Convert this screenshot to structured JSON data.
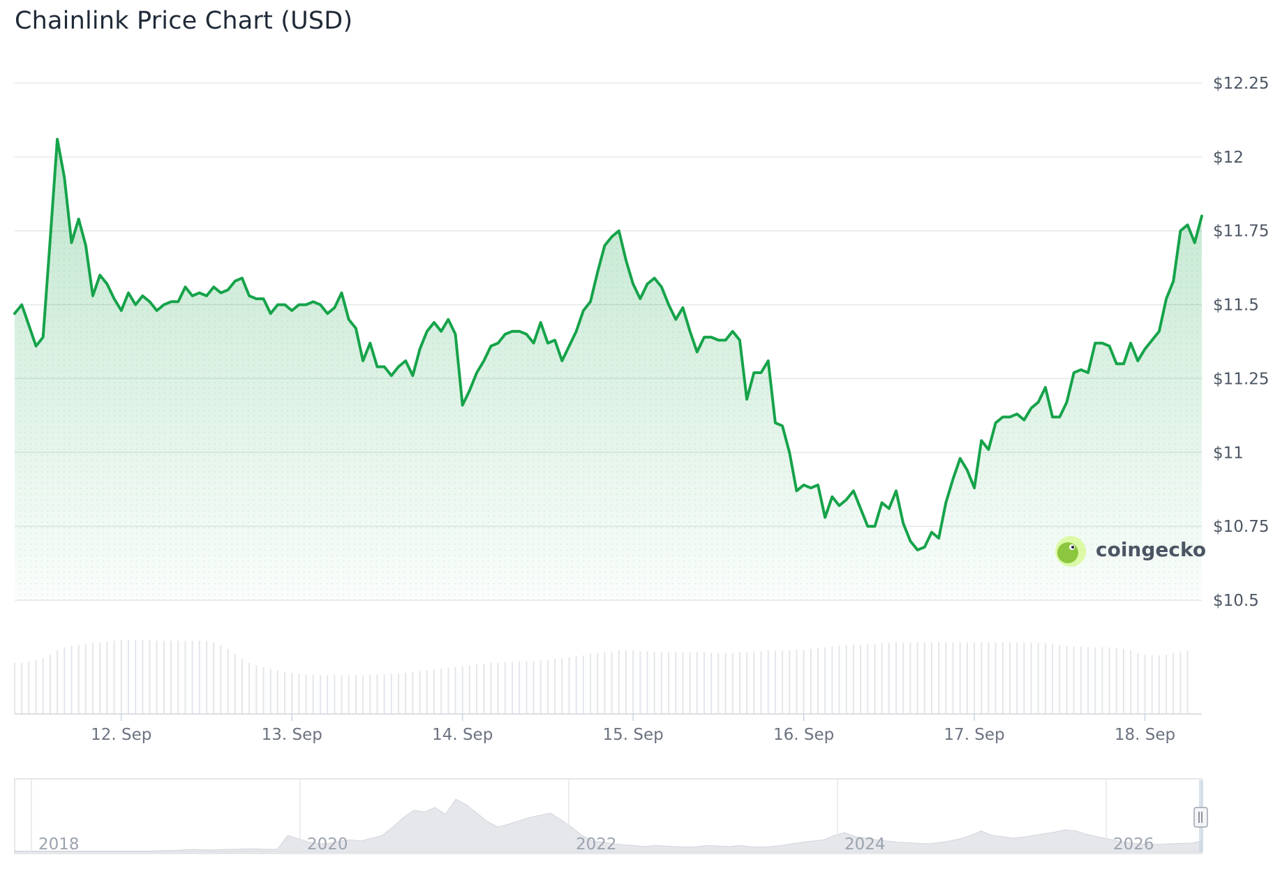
{
  "title": "Chainlink Price Chart (USD)",
  "brand": "coingecko",
  "chart_data": {
    "type": "line",
    "x_labels": [
      "12. Sep",
      "13. Sep",
      "14. Sep",
      "15. Sep",
      "16. Sep",
      "17. Sep",
      "18. Sep"
    ],
    "x_label_index": [
      15,
      39,
      63,
      87,
      111,
      135,
      159
    ],
    "y_ticks": [
      10.5,
      10.75,
      11,
      11.25,
      11.5,
      11.75,
      12,
      12.25
    ],
    "y_tick_labels": [
      "$10.5",
      "$10.75",
      "$11",
      "$11.25",
      "$11.5",
      "$11.75",
      "$12",
      "$12.25"
    ],
    "ylim": [
      10.5,
      12.25
    ],
    "series": [
      {
        "values": [
          11.47,
          11.5,
          11.43,
          11.36,
          11.39,
          11.72,
          12.06,
          11.93,
          11.71,
          11.79,
          11.7,
          11.53,
          11.6,
          11.57,
          11.52,
          11.48,
          11.54,
          11.5,
          11.53,
          11.51,
          11.48,
          11.5,
          11.51,
          11.51,
          11.56,
          11.53,
          11.54,
          11.53,
          11.56,
          11.54,
          11.55,
          11.58,
          11.59,
          11.53,
          11.52,
          11.52,
          11.47,
          11.5,
          11.5,
          11.48,
          11.5,
          11.5,
          11.51,
          11.5,
          11.47,
          11.49,
          11.54,
          11.45,
          11.42,
          11.31,
          11.37,
          11.29,
          11.29,
          11.26,
          11.29,
          11.31,
          11.26,
          11.35,
          11.41,
          11.44,
          11.41,
          11.45,
          11.4,
          11.16,
          11.21,
          11.27,
          11.31,
          11.36,
          11.37,
          11.4,
          11.41,
          11.41,
          11.4,
          11.37,
          11.44,
          11.37,
          11.38,
          11.31,
          11.36,
          11.41,
          11.48,
          11.51,
          11.61,
          11.7,
          11.73,
          11.75,
          11.65,
          11.57,
          11.52,
          11.57,
          11.59,
          11.56,
          11.5,
          11.45,
          11.49,
          11.41,
          11.34,
          11.39,
          11.39,
          11.38,
          11.38,
          11.41,
          11.38,
          11.18,
          11.27,
          11.27,
          11.31,
          11.1,
          11.09,
          11.0,
          10.87,
          10.89,
          10.88,
          10.89,
          10.78,
          10.85,
          10.82,
          10.84,
          10.87,
          10.81,
          10.75,
          10.75,
          10.83,
          10.81,
          10.87,
          10.76,
          10.7,
          10.67,
          10.68,
          10.73,
          10.71,
          10.83,
          10.91,
          10.98,
          10.94,
          10.88,
          11.04,
          11.01,
          11.1,
          11.12,
          11.12,
          11.13,
          11.11,
          11.15,
          11.17,
          11.22,
          11.12,
          11.12,
          11.17,
          11.27,
          11.28,
          11.27,
          11.37,
          11.37,
          11.36,
          11.3,
          11.3,
          11.37,
          11.31,
          11.35,
          11.38,
          11.41,
          11.52,
          11.58,
          11.75,
          11.77,
          11.71,
          11.8
        ]
      }
    ],
    "volume": [
      0.62,
      0.62,
      0.64,
      0.65,
      0.68,
      0.72,
      0.77,
      0.81,
      0.83,
      0.84,
      0.85,
      0.86,
      0.87,
      0.88,
      0.89,
      0.9,
      0.9,
      0.9,
      0.9,
      0.9,
      0.89,
      0.89,
      0.89,
      0.89,
      0.89,
      0.89,
      0.89,
      0.89,
      0.87,
      0.84,
      0.79,
      0.73,
      0.67,
      0.62,
      0.59,
      0.57,
      0.55,
      0.53,
      0.51,
      0.5,
      0.49,
      0.48,
      0.48,
      0.47,
      0.47,
      0.47,
      0.47,
      0.47,
      0.47,
      0.47,
      0.48,
      0.48,
      0.48,
      0.49,
      0.49,
      0.5,
      0.51,
      0.52,
      0.53,
      0.54,
      0.55,
      0.56,
      0.57,
      0.58,
      0.59,
      0.6,
      0.61,
      0.62,
      0.62,
      0.63,
      0.63,
      0.64,
      0.64,
      0.64,
      0.65,
      0.66,
      0.67,
      0.68,
      0.69,
      0.7,
      0.71,
      0.73,
      0.74,
      0.75,
      0.76,
      0.77,
      0.77,
      0.77,
      0.76,
      0.76,
      0.75,
      0.75,
      0.75,
      0.75,
      0.75,
      0.75,
      0.75,
      0.75,
      0.74,
      0.74,
      0.74,
      0.74,
      0.75,
      0.75,
      0.76,
      0.76,
      0.77,
      0.77,
      0.77,
      0.77,
      0.78,
      0.78,
      0.79,
      0.8,
      0.81,
      0.82,
      0.83,
      0.83,
      0.84,
      0.84,
      0.85,
      0.85,
      0.86,
      0.86,
      0.87,
      0.87,
      0.87,
      0.87,
      0.87,
      0.87,
      0.87,
      0.87,
      0.87,
      0.87,
      0.87,
      0.87,
      0.87,
      0.87,
      0.87,
      0.87,
      0.87,
      0.87,
      0.87,
      0.87,
      0.86,
      0.86,
      0.85,
      0.84,
      0.83,
      0.82,
      0.82,
      0.81,
      0.81,
      0.81,
      0.81,
      0.8,
      0.79,
      0.77,
      0.74,
      0.72,
      0.71,
      0.71,
      0.72,
      0.74,
      0.76,
      0.77
    ]
  },
  "navigator": {
    "year_labels": [
      "2018",
      "2020",
      "2022",
      "2024",
      "2026"
    ],
    "history": [
      0.02,
      0.02,
      0.02,
      0.02,
      0.02,
      0.02,
      0.02,
      0.02,
      0.02,
      0.02,
      0.02,
      0.02,
      0.02,
      0.02,
      0.03,
      0.03,
      0.04,
      0.05,
      0.04,
      0.04,
      0.05,
      0.05,
      0.06,
      0.06,
      0.05,
      0.05,
      0.3,
      0.24,
      0.18,
      0.15,
      0.16,
      0.2,
      0.22,
      0.2,
      0.25,
      0.3,
      0.45,
      0.62,
      0.75,
      0.72,
      0.8,
      0.68,
      0.95,
      0.85,
      0.7,
      0.55,
      0.45,
      0.5,
      0.56,
      0.62,
      0.66,
      0.7,
      0.58,
      0.45,
      0.3,
      0.2,
      0.18,
      0.15,
      0.13,
      0.12,
      0.1,
      0.12,
      0.11,
      0.1,
      0.09,
      0.1,
      0.12,
      0.11,
      0.1,
      0.12,
      0.1,
      0.09,
      0.1,
      0.12,
      0.15,
      0.18,
      0.2,
      0.22,
      0.3,
      0.35,
      0.28,
      0.25,
      0.22,
      0.2,
      0.18,
      0.17,
      0.16,
      0.15,
      0.17,
      0.2,
      0.24,
      0.3,
      0.38,
      0.3,
      0.28,
      0.25,
      0.27,
      0.3,
      0.33,
      0.36,
      0.4,
      0.38,
      0.32,
      0.28,
      0.24,
      0.2,
      0.17,
      0.15,
      0.14,
      0.14,
      0.15,
      0.16,
      0.16,
      0.2
    ]
  }
}
